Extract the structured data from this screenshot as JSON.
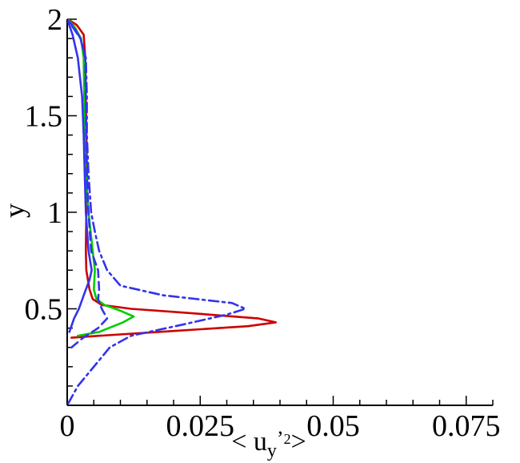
{
  "chart_data": {
    "type": "line",
    "title": "",
    "xlabel": "< u_y'^2 >",
    "ylabel": "y",
    "xlim": [
      0,
      0.08
    ],
    "ylim": [
      0,
      2
    ],
    "x_ticks": [
      0,
      0.025,
      0.05,
      0.075
    ],
    "x_tick_labels": [
      "0",
      "0.025",
      "0.05",
      "0.075"
    ],
    "y_ticks": [
      0.5,
      1,
      1.5,
      2
    ],
    "y_tick_labels": [
      "0.5",
      "1",
      "1.5",
      "2"
    ],
    "grid": false,
    "legend": "none",
    "series": [
      {
        "color": "#cc0000",
        "style": "solid",
        "points": [
          [
            0.0008,
            0.35
          ],
          [
            0.006,
            0.36
          ],
          [
            0.02,
            0.385
          ],
          [
            0.034,
            0.41
          ],
          [
            0.0392,
            0.43
          ],
          [
            0.036,
            0.45
          ],
          [
            0.022,
            0.48
          ],
          [
            0.012,
            0.5
          ],
          [
            0.0065,
            0.52
          ],
          [
            0.0048,
            0.55
          ],
          [
            0.0042,
            0.6
          ],
          [
            0.0036,
            0.7
          ],
          [
            0.0035,
            0.8
          ],
          [
            0.0036,
            1.0
          ],
          [
            0.0037,
            1.2
          ],
          [
            0.0036,
            1.4
          ],
          [
            0.0035,
            1.6
          ],
          [
            0.0034,
            1.8
          ],
          [
            0.0031,
            1.92
          ],
          [
            0.0018,
            1.97
          ],
          [
            0.0004,
            1.995
          ]
        ]
      },
      {
        "color": "#00cc00",
        "style": "solid",
        "points": [
          [
            0.002,
            0.36
          ],
          [
            0.006,
            0.38
          ],
          [
            0.0105,
            0.43
          ],
          [
            0.0125,
            0.46
          ],
          [
            0.01,
            0.49
          ],
          [
            0.007,
            0.52
          ],
          [
            0.0055,
            0.55
          ],
          [
            0.005,
            0.6
          ],
          [
            0.0052,
            0.7
          ],
          [
            0.0048,
            0.8
          ],
          [
            0.004,
            1.0
          ],
          [
            0.0035,
            1.2
          ],
          [
            0.0033,
            1.4
          ],
          [
            0.0032,
            1.6
          ],
          [
            0.0031,
            1.8
          ],
          [
            0.0026,
            1.9
          ],
          [
            0.0014,
            1.96
          ],
          [
            0.0003,
            1.995
          ]
        ]
      },
      {
        "color": "#3333ee",
        "style": "solid",
        "points": [
          [
            0.0004,
            0.38
          ],
          [
            0.0013,
            0.45
          ],
          [
            0.0022,
            0.5
          ],
          [
            0.0035,
            0.6
          ],
          [
            0.0042,
            0.65
          ],
          [
            0.0046,
            0.7
          ],
          [
            0.004,
            0.8
          ],
          [
            0.0035,
            1.0
          ],
          [
            0.0033,
            1.2
          ],
          [
            0.0031,
            1.4
          ],
          [
            0.0028,
            1.6
          ],
          [
            0.002,
            1.8
          ],
          [
            0.001,
            1.92
          ],
          [
            0.0002,
            1.985
          ]
        ]
      },
      {
        "color": "#3333ee",
        "style": "dashed",
        "points": [
          [
            0.0008,
            0.3
          ],
          [
            0.003,
            0.35
          ],
          [
            0.0058,
            0.4
          ],
          [
            0.0075,
            0.45
          ],
          [
            0.0065,
            0.5
          ],
          [
            0.0058,
            0.55
          ],
          [
            0.006,
            0.6
          ],
          [
            0.0058,
            0.7
          ],
          [
            0.0045,
            0.8
          ],
          [
            0.004,
            1.0
          ],
          [
            0.0037,
            1.2
          ],
          [
            0.0036,
            1.4
          ],
          [
            0.0035,
            1.6
          ],
          [
            0.0034,
            1.8
          ],
          [
            0.0025,
            1.9
          ],
          [
            0.0012,
            1.96
          ],
          [
            0.0003,
            1.99
          ]
        ]
      },
      {
        "color": "#3333ee",
        "style": "dashdot",
        "points": [
          [
            0.0002,
            0.01
          ],
          [
            0.002,
            0.1
          ],
          [
            0.005,
            0.2
          ],
          [
            0.008,
            0.3
          ],
          [
            0.012,
            0.36
          ],
          [
            0.022,
            0.42
          ],
          [
            0.03,
            0.47
          ],
          [
            0.0335,
            0.5
          ],
          [
            0.031,
            0.53
          ],
          [
            0.018,
            0.57
          ],
          [
            0.01,
            0.62
          ],
          [
            0.0075,
            0.7
          ],
          [
            0.006,
            0.8
          ],
          [
            0.0052,
            0.9
          ],
          [
            0.0045,
            1.0
          ],
          [
            0.004,
            1.2
          ],
          [
            0.0037,
            1.4
          ],
          [
            0.0037,
            1.6
          ],
          [
            0.0035,
            1.8
          ],
          [
            0.0025,
            1.9
          ],
          [
            0.001,
            1.96
          ],
          [
            0.0002,
            1.99
          ]
        ]
      }
    ]
  }
}
